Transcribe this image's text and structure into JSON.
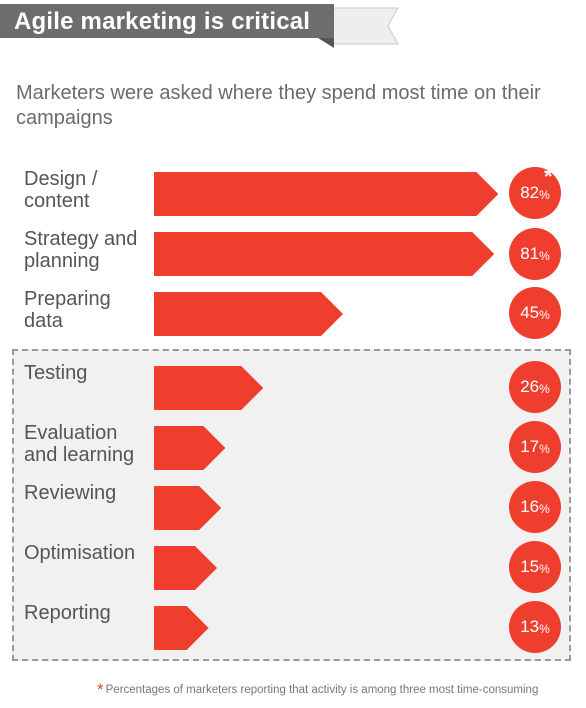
{
  "title": "Agile marketing is critical",
  "subtitle": "Marketers were asked where they spend most time on their campaigns",
  "chart_data": {
    "type": "bar",
    "orientation": "horizontal",
    "categories": [
      "Design / content",
      "Strategy and planning",
      "Preparing data",
      "Testing",
      "Evaluation and learning",
      "Reviewing",
      "Optimisation",
      "Reporting"
    ],
    "values": [
      82,
      81,
      45,
      26,
      17,
      16,
      15,
      13
    ],
    "value_labels": [
      "82",
      "81",
      "45",
      "26",
      "17",
      "16",
      "15",
      "13"
    ],
    "unit": "%",
    "colors": {
      "bar": "#ef3e2e",
      "badge": "#ef3e2e",
      "highlight_box": "#f1f1f1",
      "title_banner": "#6d6d6d"
    },
    "highlighted_group": [
      "Testing",
      "Evaluation and learning",
      "Reviewing",
      "Optimisation",
      "Reporting"
    ],
    "footnote_marker": "*",
    "footnote": "Percentages of marketers reporting that activity is among three most time-consuming"
  }
}
